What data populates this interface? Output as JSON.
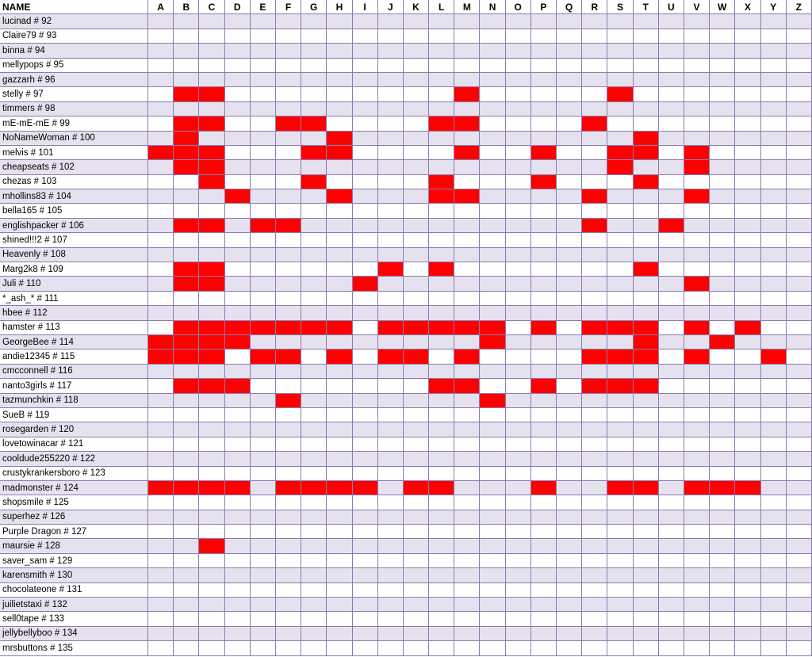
{
  "header": {
    "name_label": "NAME",
    "letters": [
      "A",
      "B",
      "C",
      "D",
      "E",
      "F",
      "G",
      "H",
      "I",
      "J",
      "K",
      "L",
      "M",
      "N",
      "O",
      "P",
      "Q",
      "R",
      "S",
      "T",
      "U",
      "V",
      "W",
      "X",
      "Y",
      "Z"
    ]
  },
  "colors": {
    "marked": "#ff0000",
    "alt_row": "#e6e1ef",
    "grid_line": "#8a7bb0"
  },
  "rows": [
    {
      "name": "lucinad # 92",
      "marked": []
    },
    {
      "name": "Claire79 # 93",
      "marked": []
    },
    {
      "name": "binna # 94",
      "marked": []
    },
    {
      "name": "mellypops # 95",
      "marked": []
    },
    {
      "name": "gazzarh # 96",
      "marked": []
    },
    {
      "name": "stelly # 97",
      "marked": [
        "B",
        "C",
        "M",
        "S"
      ]
    },
    {
      "name": "timmers # 98",
      "marked": []
    },
    {
      "name": "mE-mE-mE # 99",
      "marked": [
        "B",
        "C",
        "F",
        "G",
        "L",
        "M",
        "R"
      ]
    },
    {
      "name": "NoNameWoman # 100",
      "marked": [
        "B",
        "H",
        "T"
      ]
    },
    {
      "name": "melvis # 101",
      "marked": [
        "A",
        "B",
        "C",
        "G",
        "H",
        "M",
        "P",
        "S",
        "T",
        "V"
      ]
    },
    {
      "name": "cheapseats # 102",
      "marked": [
        "B",
        "C",
        "S",
        "V"
      ]
    },
    {
      "name": "chezas # 103",
      "marked": [
        "C",
        "G",
        "L",
        "P",
        "T"
      ]
    },
    {
      "name": "mhollins83 # 104",
      "marked": [
        "D",
        "H",
        "L",
        "M",
        "R",
        "V"
      ]
    },
    {
      "name": "bella165 # 105",
      "marked": []
    },
    {
      "name": "englishpacker # 106",
      "marked": [
        "B",
        "C",
        "E",
        "F",
        "R",
        "U"
      ]
    },
    {
      "name": "shined!!!2 # 107",
      "marked": []
    },
    {
      "name": "Heavenly # 108",
      "marked": []
    },
    {
      "name": "Marg2k8 # 109",
      "marked": [
        "B",
        "C",
        "J",
        "L",
        "T"
      ]
    },
    {
      "name": "Juli # 110",
      "marked": [
        "B",
        "C",
        "I",
        "V"
      ]
    },
    {
      "name": "*_ash_* # 111",
      "marked": []
    },
    {
      "name": "hbee # 112",
      "marked": []
    },
    {
      "name": "hamster # 113",
      "marked": [
        "B",
        "C",
        "D",
        "E",
        "F",
        "G",
        "H",
        "J",
        "K",
        "L",
        "M",
        "N",
        "P",
        "R",
        "S",
        "T",
        "V",
        "X"
      ]
    },
    {
      "name": "GeorgeBee # 114",
      "marked": [
        "A",
        "B",
        "C",
        "D",
        "N",
        "T",
        "W"
      ]
    },
    {
      "name": "andie12345 # 115",
      "marked": [
        "A",
        "B",
        "C",
        "E",
        "F",
        "H",
        "J",
        "K",
        "M",
        "R",
        "S",
        "T",
        "V",
        "Y"
      ]
    },
    {
      "name": "cmcconnell # 116",
      "marked": []
    },
    {
      "name": "nanto3girls # 117",
      "marked": [
        "B",
        "C",
        "D",
        "L",
        "M",
        "P",
        "R",
        "S",
        "T"
      ]
    },
    {
      "name": "tazmunchkin # 118",
      "marked": [
        "F",
        "N"
      ]
    },
    {
      "name": "SueB # 119",
      "marked": []
    },
    {
      "name": "rosegarden # 120",
      "marked": []
    },
    {
      "name": "lovetowinacar # 121",
      "marked": []
    },
    {
      "name": "cooldude255220 # 122",
      "marked": []
    },
    {
      "name": "crustykrankersboro # 123",
      "marked": []
    },
    {
      "name": "madmonster # 124",
      "marked": [
        "A",
        "B",
        "C",
        "D",
        "F",
        "G",
        "H",
        "I",
        "K",
        "L",
        "P",
        "S",
        "T",
        "V",
        "W",
        "X"
      ]
    },
    {
      "name": "shopsmile # 125",
      "marked": []
    },
    {
      "name": "superhez # 126",
      "marked": []
    },
    {
      "name": "Purple Dragon # 127",
      "marked": []
    },
    {
      "name": "maursie # 128",
      "marked": [
        "C"
      ]
    },
    {
      "name": "saver_sam # 129",
      "marked": []
    },
    {
      "name": "karensmith # 130",
      "marked": []
    },
    {
      "name": "chocolateone # 131",
      "marked": []
    },
    {
      "name": "juilietstaxi # 132",
      "marked": []
    },
    {
      "name": "sell0tape # 133",
      "marked": []
    },
    {
      "name": "jellybellyboo # 134",
      "marked": []
    },
    {
      "name": "mrsbuttons # 135",
      "marked": []
    }
  ]
}
